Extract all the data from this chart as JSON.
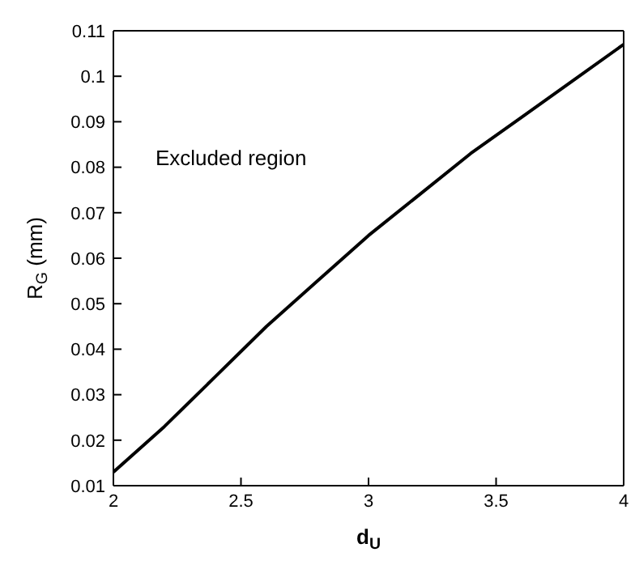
{
  "chart_data": {
    "type": "line",
    "xlabel": "d$_{U}$",
    "ylabel": "R$_{G}$ (mm)",
    "annotations": [
      "Excluded region"
    ],
    "x": [
      2,
      2.2,
      2.4,
      2.6,
      2.8,
      3,
      3.2,
      3.4,
      3.6,
      3.8,
      4
    ],
    "series": [
      {
        "color": "#000000",
        "values": [
          0.013,
          0.023,
          0.034,
          0.045,
          0.055,
          0.065,
          0.074,
          0.083,
          0.091,
          0.099,
          0.107
        ]
      }
    ],
    "xlim": [
      2,
      4
    ],
    "xticks": [
      2,
      2.5,
      3,
      3.5,
      4
    ],
    "ylim": [
      0.01,
      0.11
    ],
    "yticks": [
      0.01,
      0.02,
      0.03,
      0.04,
      0.05,
      0.06,
      0.07,
      0.08,
      0.09,
      0.1,
      0.11
    ],
    "grid": false,
    "legend": false,
    "marker": "none",
    "line_style": "solid"
  }
}
